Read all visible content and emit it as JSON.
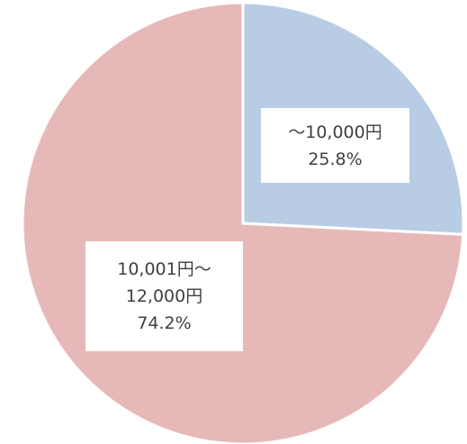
{
  "chart_data": {
    "type": "pie",
    "categories": [
      "～10,000円",
      "10,001円～12,000円"
    ],
    "values": [
      25.8,
      74.2
    ],
    "value_labels": [
      "25.8%",
      "74.2%"
    ],
    "colors": [
      "#b8cce4",
      "#e6b9b8"
    ]
  }
}
